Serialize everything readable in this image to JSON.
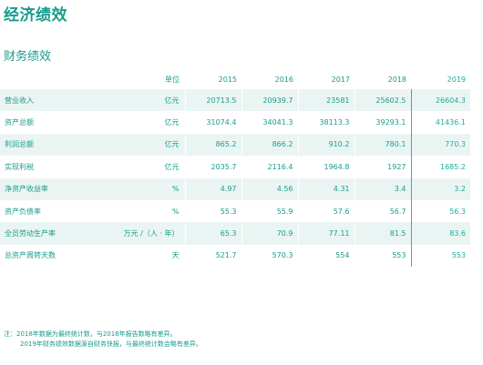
{
  "page_title": "经济绩效",
  "section_title": "财务绩效",
  "table": {
    "unit_header": "单位",
    "years": [
      "2015",
      "2016",
      "2017",
      "2018",
      "2019"
    ],
    "rows": [
      {
        "label": "营业收入",
        "unit": "亿元",
        "values": [
          "20713.5",
          "20939.7",
          "23581",
          "25602.5",
          "26604.3"
        ]
      },
      {
        "label": "资产总额",
        "unit": "亿元",
        "values": [
          "31074.4",
          "34041.3",
          "38113.3",
          "39293.1",
          "41436.1"
        ]
      },
      {
        "label": "利润总额",
        "unit": "亿元",
        "values": [
          "865.2",
          "866.2",
          "910.2",
          "780.1",
          "770.3"
        ]
      },
      {
        "label": "实现利税",
        "unit": "亿元",
        "values": [
          "2035.7",
          "2116.4",
          "1964.8",
          "1927",
          "1685.2"
        ]
      },
      {
        "label": "净资产收益率",
        "unit": "%",
        "values": [
          "4.97",
          "4.56",
          "4.31",
          "3.4",
          "3.2"
        ]
      },
      {
        "label": "资产负债率",
        "unit": "%",
        "values": [
          "55.3",
          "55.9",
          "57.6",
          "56.7",
          "56.3"
        ]
      },
      {
        "label": "全员劳动生产率",
        "unit": "万元 /（人 · 年）",
        "values": [
          "65.3",
          "70.9",
          "77.11",
          "81.5",
          "83.6"
        ]
      },
      {
        "label": "总资产周转天数",
        "unit": "天",
        "values": [
          "521.7",
          "570.3",
          "554",
          "553",
          "553"
        ]
      }
    ]
  },
  "notes": {
    "line1": "注：2018年数据为最终统计数，与2018年报告数略有差异。",
    "line2": "2019年财务绩效数据源自财务快报，与最终统计数会略有差异。"
  }
}
